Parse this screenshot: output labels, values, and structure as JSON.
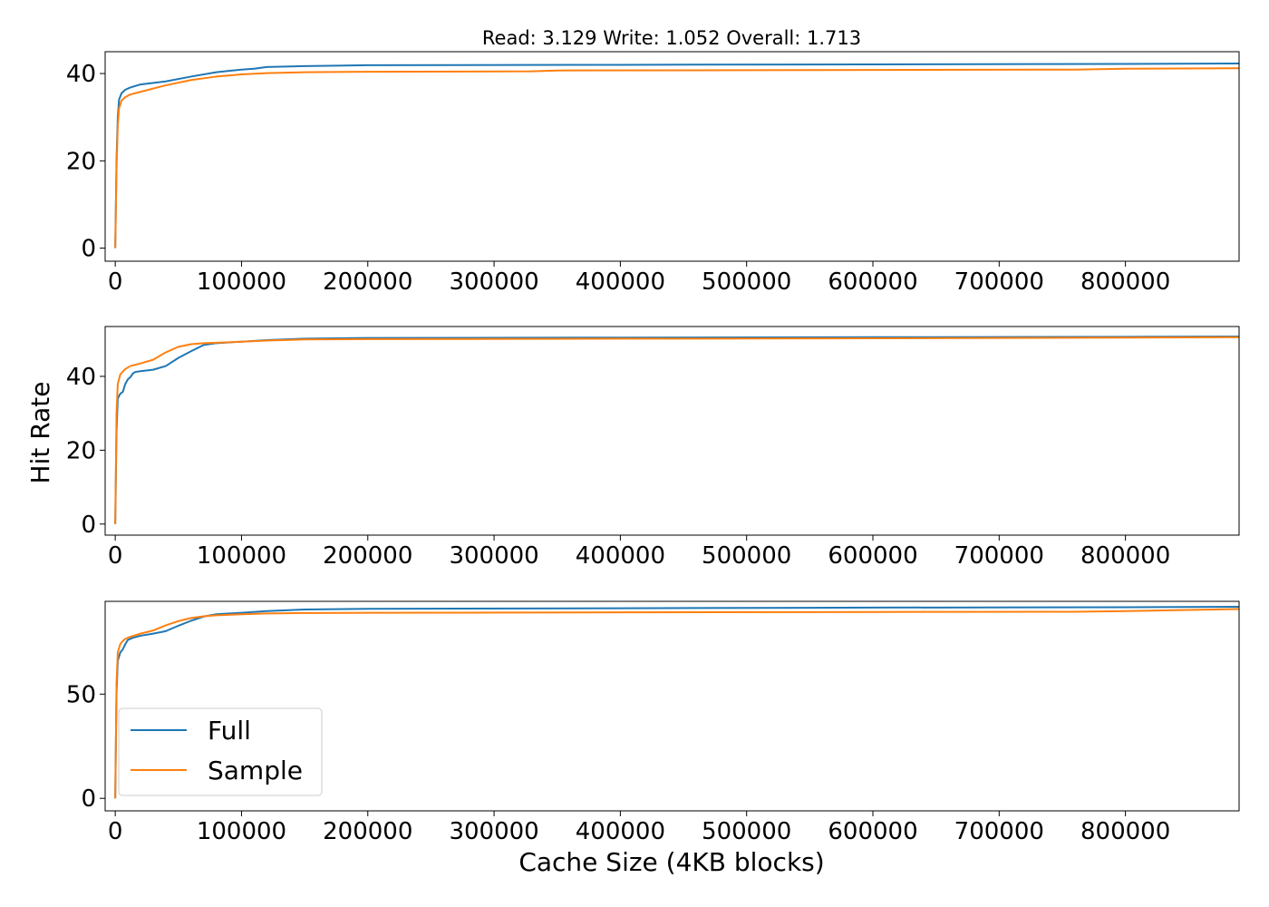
{
  "figure": {
    "title": "Read: 3.129 Write: 1.052 Overall: 1.713",
    "xlabel": "Cache Size (4KB blocks)",
    "ylabel": "Hit Rate"
  },
  "colors": {
    "full": "#1f77b4",
    "sample": "#ff7f0e"
  },
  "legend": {
    "placement": "lower-left",
    "entries": [
      "Full",
      "Sample"
    ]
  },
  "chart_data": [
    {
      "type": "line",
      "xlim": [
        -8000,
        890000
      ],
      "ylim": [
        -3,
        45
      ],
      "xticks": [
        0,
        100000,
        200000,
        300000,
        400000,
        500000,
        600000,
        700000,
        800000
      ],
      "xtick_labels": [
        "0",
        "100000",
        "200000",
        "300000",
        "400000",
        "500000",
        "600000",
        "700000",
        "800000"
      ],
      "yticks": [
        0,
        20,
        40
      ],
      "ytick_labels": [
        "0",
        "20",
        "40"
      ],
      "grid": false,
      "series": [
        {
          "name": "Full",
          "x": [
            0,
            1000,
            2000,
            3000,
            5000,
            8000,
            12000,
            20000,
            40000,
            60000,
            80000,
            100000,
            110000,
            120000,
            150000,
            200000,
            400000,
            600000,
            800000,
            890000
          ],
          "y": [
            0,
            20,
            30,
            34,
            35.5,
            36.3,
            36.8,
            37.5,
            38.2,
            39.3,
            40.3,
            40.9,
            41.1,
            41.5,
            41.7,
            41.9,
            42.0,
            42.1,
            42.2,
            42.3
          ]
        },
        {
          "name": "Sample",
          "x": [
            0,
            1000,
            2000,
            3000,
            5000,
            8000,
            12000,
            20000,
            40000,
            60000,
            80000,
            100000,
            120000,
            150000,
            200000,
            330000,
            350000,
            560000,
            760000,
            800000,
            890000
          ],
          "y": [
            0,
            18,
            28,
            32,
            33.8,
            34.6,
            35.2,
            35.8,
            37.3,
            38.5,
            39.3,
            39.8,
            40.1,
            40.3,
            40.4,
            40.5,
            40.7,
            40.8,
            40.9,
            41.1,
            41.2
          ]
        }
      ]
    },
    {
      "type": "line",
      "xlim": [
        -8000,
        890000
      ],
      "ylim": [
        -3,
        53.5
      ],
      "xticks": [
        0,
        100000,
        200000,
        300000,
        400000,
        500000,
        600000,
        700000,
        800000
      ],
      "xtick_labels": [
        "0",
        "100000",
        "200000",
        "300000",
        "400000",
        "500000",
        "600000",
        "700000",
        "800000"
      ],
      "yticks": [
        0,
        20,
        40
      ],
      "ytick_labels": [
        "0",
        "20",
        "40"
      ],
      "grid": false,
      "series": [
        {
          "name": "Full",
          "x": [
            0,
            1000,
            2000,
            4000,
            6000,
            8000,
            10000,
            12000,
            14000,
            16000,
            20000,
            30000,
            40000,
            50000,
            60000,
            70000,
            80000,
            100000,
            120000,
            150000,
            200000,
            400000,
            600000,
            800000,
            890000
          ],
          "y": [
            0,
            25,
            34,
            35.3,
            35.8,
            38,
            39.2,
            39.8,
            40.8,
            41.2,
            41.4,
            41.8,
            42.8,
            45,
            46.8,
            48.5,
            49,
            49.4,
            49.8,
            50.2,
            50.4,
            50.5,
            50.6,
            50.7,
            50.8
          ]
        },
        {
          "name": "Sample",
          "x": [
            0,
            1000,
            2000,
            4000,
            6000,
            8000,
            12000,
            20000,
            30000,
            40000,
            50000,
            60000,
            70000,
            80000,
            100000,
            120000,
            150000,
            200000,
            400000,
            600000,
            800000,
            890000
          ],
          "y": [
            0,
            30,
            38,
            40.5,
            41.3,
            42,
            42.8,
            43.5,
            44.5,
            46.5,
            48,
            48.7,
            49,
            49.1,
            49.4,
            49.7,
            50,
            50.1,
            50.2,
            50.3,
            50.5,
            50.6
          ]
        }
      ]
    },
    {
      "type": "line",
      "xlim": [
        -8000,
        890000
      ],
      "ylim": [
        -6,
        94.5
      ],
      "xticks": [
        0,
        100000,
        200000,
        300000,
        400000,
        500000,
        600000,
        700000,
        800000
      ],
      "xtick_labels": [
        "0",
        "100000",
        "200000",
        "300000",
        "400000",
        "500000",
        "600000",
        "700000",
        "800000"
      ],
      "yticks": [
        0,
        50
      ],
      "ytick_labels": [
        "0",
        "50"
      ],
      "grid": false,
      "series": [
        {
          "name": "Full",
          "x": [
            0,
            1000,
            2000,
            4000,
            6000,
            8000,
            10000,
            14000,
            20000,
            30000,
            40000,
            50000,
            60000,
            70000,
            80000,
            100000,
            120000,
            150000,
            200000,
            400000,
            600000,
            800000,
            890000
          ],
          "y": [
            0,
            50,
            66,
            70,
            71.5,
            74,
            76,
            77,
            78,
            79,
            80.2,
            82.8,
            85.2,
            87.2,
            88.3,
            89,
            89.8,
            90.6,
            90.9,
            91.2,
            91.5,
            91.7,
            91.9
          ]
        },
        {
          "name": "Sample",
          "x": [
            0,
            1000,
            2000,
            4000,
            6000,
            8000,
            12000,
            20000,
            30000,
            40000,
            50000,
            60000,
            70000,
            80000,
            100000,
            120000,
            150000,
            200000,
            400000,
            600000,
            760000,
            800000,
            890000
          ],
          "y": [
            0,
            55,
            70,
            74,
            75.5,
            76.5,
            77.5,
            79,
            80.5,
            83,
            85,
            86.5,
            87.3,
            87.8,
            88.3,
            88.7,
            88.9,
            89,
            89.2,
            89.4,
            89.5,
            89.8,
            90.8
          ]
        }
      ]
    }
  ]
}
